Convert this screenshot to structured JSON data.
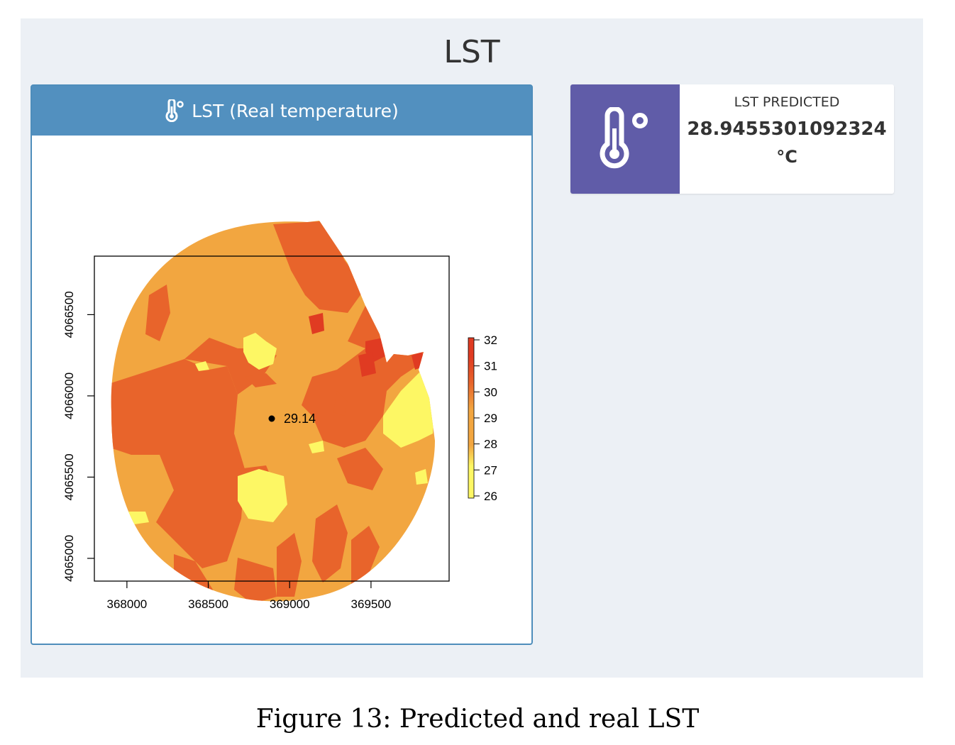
{
  "page": {
    "title": "LST"
  },
  "box": {
    "title": "LST (Real temperature)",
    "icon": "thermometer-icon",
    "header_color": "#5290bf"
  },
  "info_box": {
    "label": "LST PREDICTED",
    "value": "28.9455301092324",
    "unit": "°C",
    "icon": "thermometer-icon",
    "icon_bg_color": "#605ca8"
  },
  "chart_data": {
    "type": "heatmap",
    "x_ticks": [
      "368000",
      "368500",
      "369000",
      "369500"
    ],
    "y_ticks": [
      "4065000",
      "4065500",
      "4066000",
      "4066500"
    ],
    "xlim": [
      367800,
      369980
    ],
    "ylim": [
      4064860,
      4066860
    ],
    "legend": {
      "ticks": [
        "26",
        "27",
        "28",
        "29",
        "30",
        "31",
        "32"
      ],
      "range": [
        26,
        32
      ],
      "colors": [
        "#fdf764",
        "#f2a640",
        "#e8642b",
        "#e03b22"
      ]
    },
    "point": {
      "x": 368890,
      "y": 4065860,
      "label": "29.14"
    },
    "grid": false
  },
  "caption": "Figure 13: Predicted and real LST"
}
